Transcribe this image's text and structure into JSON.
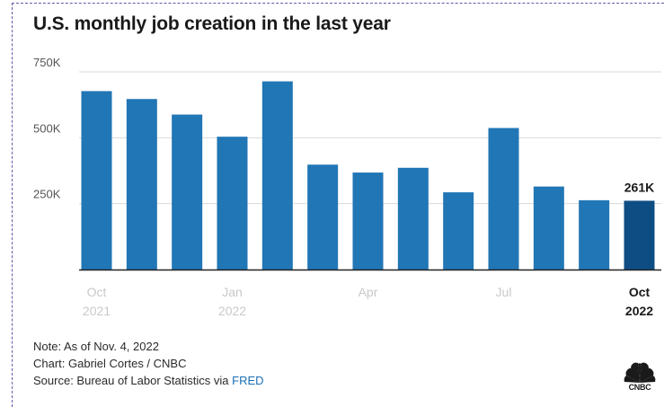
{
  "chart_data": {
    "type": "bar",
    "title": "U.S. monthly job creation in the last year",
    "categories": [
      "Oct 2021",
      "Nov 2021",
      "Dec 2021",
      "Jan 2022",
      "Feb 2022",
      "Mar 2022",
      "Apr 2022",
      "May 2022",
      "Jun 2022",
      "Jul 2022",
      "Aug 2022",
      "Sep 2022",
      "Oct 2022"
    ],
    "values": [
      677,
      647,
      588,
      504,
      714,
      398,
      368,
      386,
      293,
      537,
      315,
      263,
      261
    ],
    "units": "thousands",
    "ylim": [
      0,
      750
    ],
    "yticks": [
      {
        "value": 250,
        "label": "250K"
      },
      {
        "value": 500,
        "label": "500K"
      },
      {
        "value": 750,
        "label": "750K"
      }
    ],
    "xticks": [
      {
        "index": 0,
        "line1": "Oct",
        "line2": "2021",
        "highlight": false
      },
      {
        "index": 3,
        "line1": "Jan",
        "line2": "2022",
        "highlight": false
      },
      {
        "index": 6,
        "line1": "Apr",
        "line2": "",
        "highlight": false
      },
      {
        "index": 9,
        "line1": "Jul",
        "line2": "",
        "highlight": false
      },
      {
        "index": 12,
        "line1": "Oct",
        "line2": "2022",
        "highlight": true
      }
    ],
    "highlight_index": 12,
    "data_labels": [
      {
        "index": 12,
        "text": "261K"
      }
    ],
    "grid": true,
    "colors": {
      "bar": "#2176b5",
      "highlight": "#0d4d83",
      "grid": "#d9d9d9",
      "axis": "#222222",
      "tick_muted": "#c9c9c9",
      "tick_strong": "#1a1a1a",
      "ytick": "#555555"
    }
  },
  "notes": {
    "note": "Note: As of Nov. 4, 2022",
    "credit": "Chart: Gabriel Cortes / CNBC",
    "source_prefix": "Source: Bureau of Labor Statistics via ",
    "source_link": "FRED"
  },
  "logo": {
    "word": "CNBC",
    "icon": "cnbc-peacock-icon",
    "colors": [
      "#1a1a1a"
    ]
  }
}
